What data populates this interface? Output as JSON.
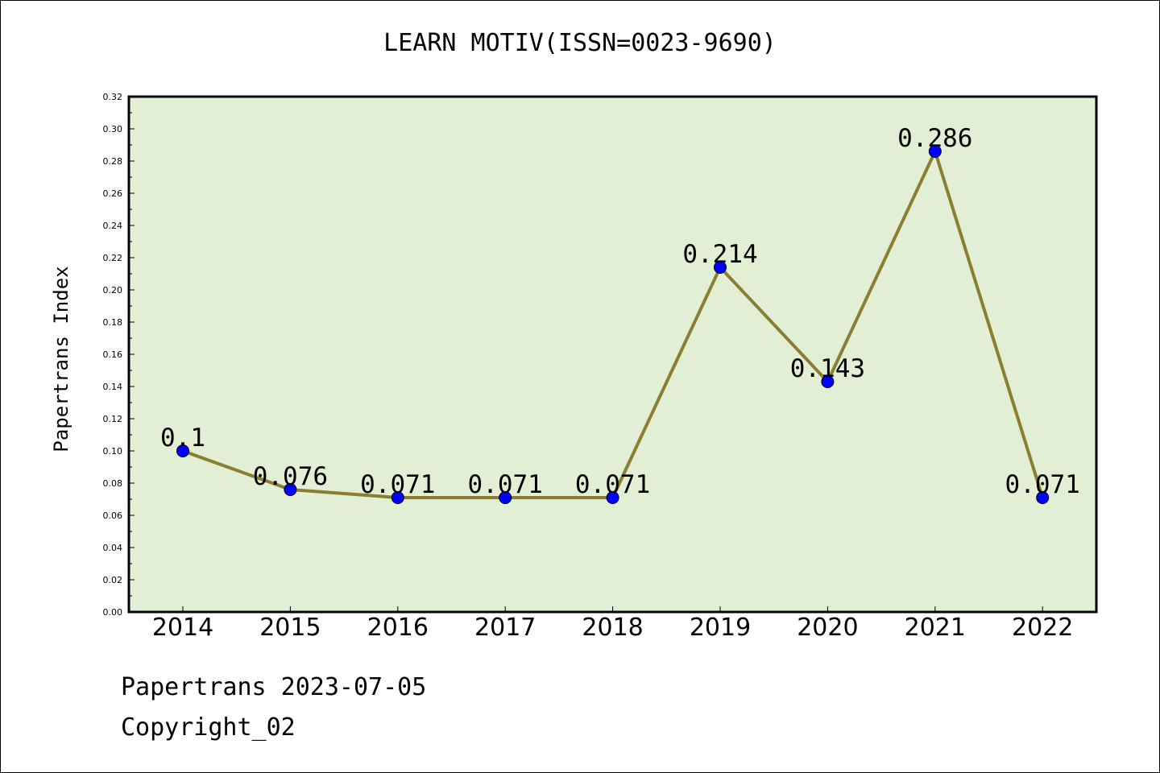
{
  "colors": {
    "plot_bg": "#e2efd5",
    "line": "#8b7d32",
    "marker": "#0000ff",
    "axis": "#000000"
  },
  "footer": {
    "line1": "Papertrans 2023-07-05",
    "line2": "Copyright_02"
  },
  "chart_data": {
    "type": "line",
    "title": "LEARN MOTIV(ISSN=0023-9690)",
    "xlabel": "",
    "ylabel": "Papertrans Index",
    "categories": [
      "2014",
      "2015",
      "2016",
      "2017",
      "2018",
      "2019",
      "2020",
      "2021",
      "2022"
    ],
    "series": [
      {
        "values": [
          0.1,
          0.076,
          0.071,
          0.071,
          0.071,
          0.214,
          0.143,
          0.286,
          0.071
        ],
        "labels": [
          "0.1",
          "0.076",
          "0.071",
          "0.071",
          "0.071",
          "0.214",
          "0.143",
          "0.286",
          "0.071"
        ]
      }
    ],
    "ylim": [
      0,
      0.32
    ],
    "yticks": [
      "0.00",
      "0.02",
      "0.04",
      "0.06",
      "0.08",
      "0.10",
      "0.12",
      "0.14",
      "0.16",
      "0.18",
      "0.20",
      "0.22",
      "0.24",
      "0.26",
      "0.28",
      "0.30",
      "0.32"
    ],
    "grid": false,
    "legend": "none"
  }
}
